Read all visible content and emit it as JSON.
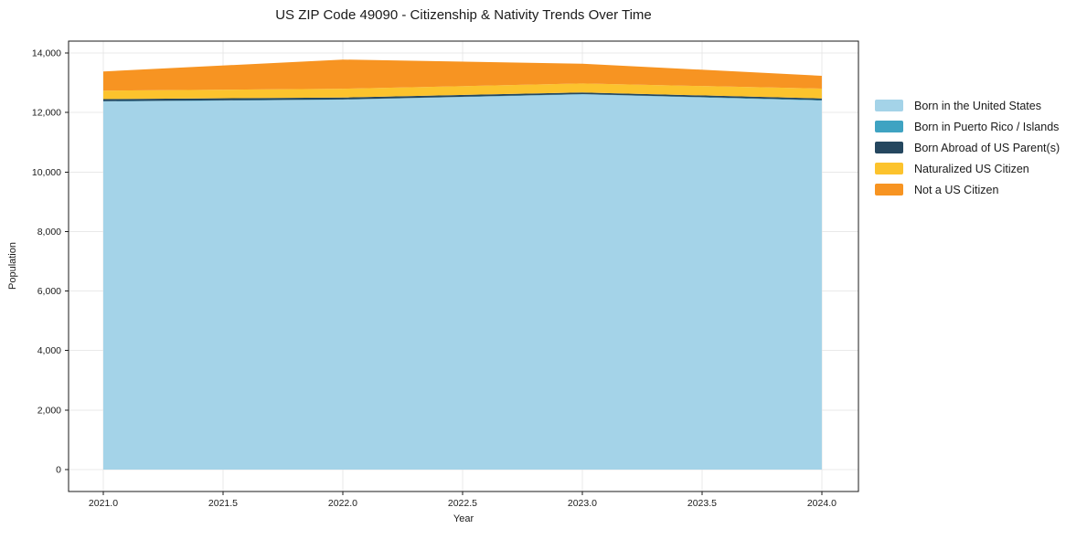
{
  "figure": {
    "background": "#FFFFFF"
  },
  "chart_data": {
    "type": "area",
    "stacked": true,
    "title": "US ZIP Code 49090 - Citizenship & Nativity Trends Over Time",
    "xlabel": "Year",
    "ylabel": "Population",
    "x": [
      2021,
      2022,
      2023,
      2024
    ],
    "series": [
      {
        "name": "Born in the United States",
        "color": "#A4D3E8",
        "values": [
          12370,
          12430,
          12610,
          12400
        ]
      },
      {
        "name": "Born in Puerto Rico / Islands",
        "color": "#3FA3C2",
        "values": [
          10,
          10,
          10,
          15
        ]
      },
      {
        "name": "Born Abroad of US Parent(s)",
        "color": "#25475F",
        "values": [
          70,
          65,
          55,
          60
        ]
      },
      {
        "name": "Naturalized US Citizen",
        "color": "#FCC32D",
        "values": [
          285,
          295,
          300,
          330
        ]
      },
      {
        "name": "Not a US Citizen",
        "color": "#F79422",
        "values": [
          645,
          980,
          665,
          430
        ]
      }
    ],
    "totals": [
      13380,
      13780,
      13640,
      13235
    ],
    "xlim": [
      2020.855,
      2024.153
    ],
    "ylim": [
      -736,
      14400
    ],
    "xticks": [
      2021.0,
      2021.5,
      2022.0,
      2022.5,
      2023.0,
      2023.5,
      2024.0
    ],
    "xtick_labels": [
      "2021.0",
      "2021.5",
      "2022.0",
      "2022.5",
      "2023.0",
      "2023.5",
      "2024.0"
    ],
    "yticks": [
      0,
      2000,
      4000,
      6000,
      8000,
      10000,
      12000,
      14000
    ],
    "ytick_labels": [
      "0",
      "2,000",
      "4,000",
      "6,000",
      "8,000",
      "10,000",
      "12,000",
      "14,000"
    ],
    "grid": true,
    "legend_position": "right-outside",
    "colors": {
      "grid": "#E9E9E9",
      "spine": "#1A1A1A",
      "text": "#1A1A1A"
    }
  }
}
